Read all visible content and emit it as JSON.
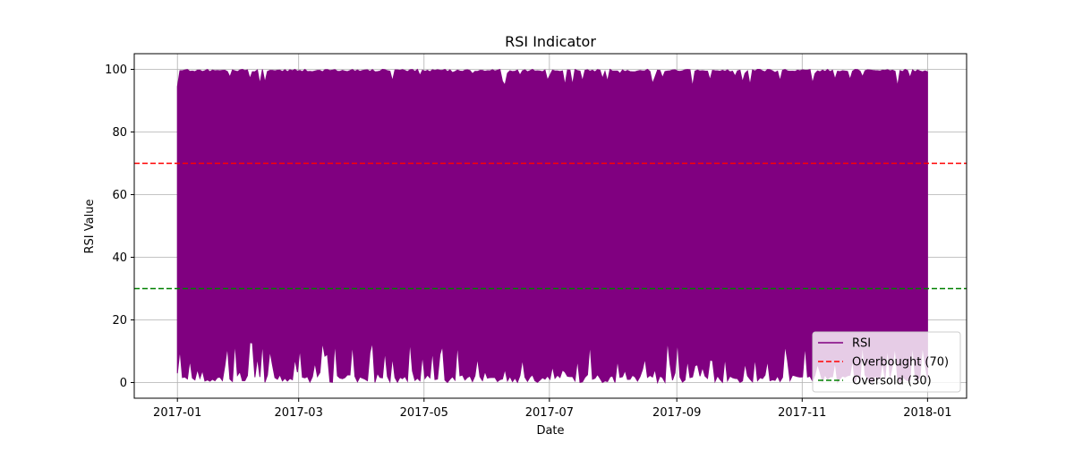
{
  "chart_data": {
    "type": "line",
    "title": "RSI Indicator",
    "xlabel": "Date",
    "ylabel": "RSI Value",
    "xlim": [
      "2016-12-11",
      "2018-01-20"
    ],
    "ylim": [
      -5,
      105
    ],
    "x_ticks": [
      "2017-01",
      "2017-03",
      "2017-05",
      "2017-07",
      "2017-09",
      "2017-11",
      "2018-01"
    ],
    "y_ticks": [
      0,
      20,
      40,
      60,
      80,
      100
    ],
    "grid": true,
    "legend_position": "lower-right",
    "series": [
      {
        "name": "RSI",
        "style": "solid",
        "color": "#800080",
        "x_range": [
          "2017-01-01",
          "2017-12-31"
        ],
        "min": 0,
        "max": 100,
        "description_values": {
          "typical_upper": 100,
          "typical_lower": 0
        }
      }
    ],
    "reference_lines": [
      {
        "name": "Overbought (70)",
        "y": 70,
        "color": "#ff0000",
        "style": "dashed"
      },
      {
        "name": "Oversold (30)",
        "y": 30,
        "color": "#008000",
        "style": "dashed"
      }
    ]
  }
}
